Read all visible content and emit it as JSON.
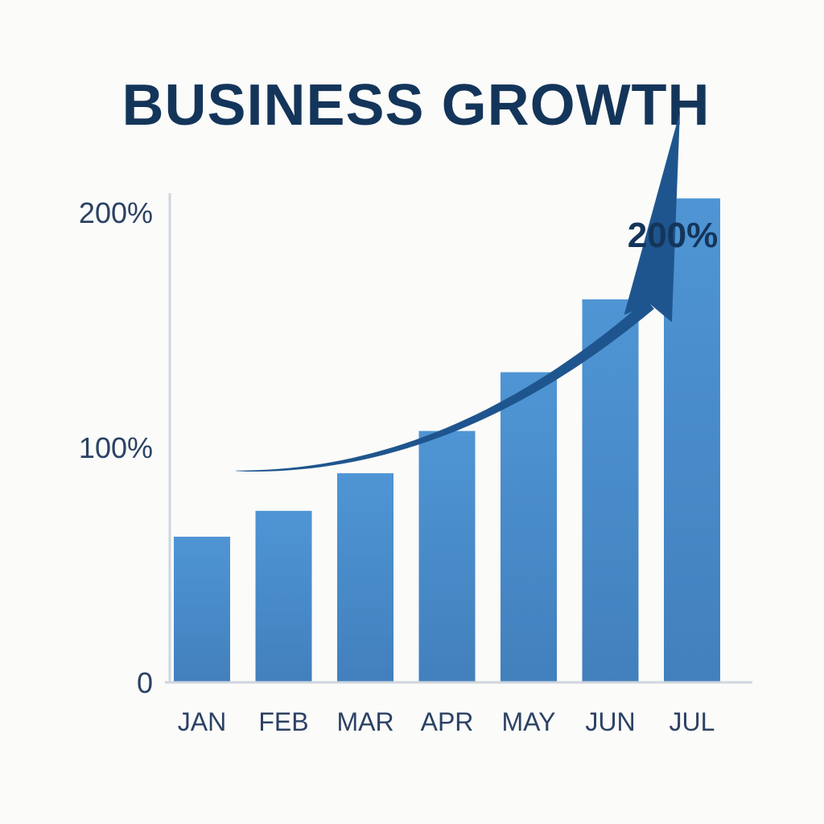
{
  "colors": {
    "bar_top": "#4f95d4",
    "bar_bottom": "#4280bd",
    "arrow": "#1f558e",
    "axis": "#cfd6de",
    "title": "#14355a",
    "text": "#2c4264"
  },
  "chart_data": {
    "type": "bar",
    "title": "BUSINESS GROWTH",
    "xlabel": "",
    "ylabel": "",
    "categories": [
      "JAN",
      "FEB",
      "MAR",
      "APR",
      "MAY",
      "JUN",
      "JUL"
    ],
    "values": [
      62,
      73,
      89,
      107,
      132,
      163,
      206
    ],
    "ylim": [
      0,
      200
    ],
    "yticks": [
      {
        "value": 0,
        "label": "0"
      },
      {
        "value": 100,
        "label": "100%"
      },
      {
        "value": 200,
        "label": "200%"
      }
    ],
    "grid": false,
    "legend": "none",
    "trend_arrow": {
      "from_value": 90,
      "to_value": 243,
      "label": "200%"
    }
  }
}
